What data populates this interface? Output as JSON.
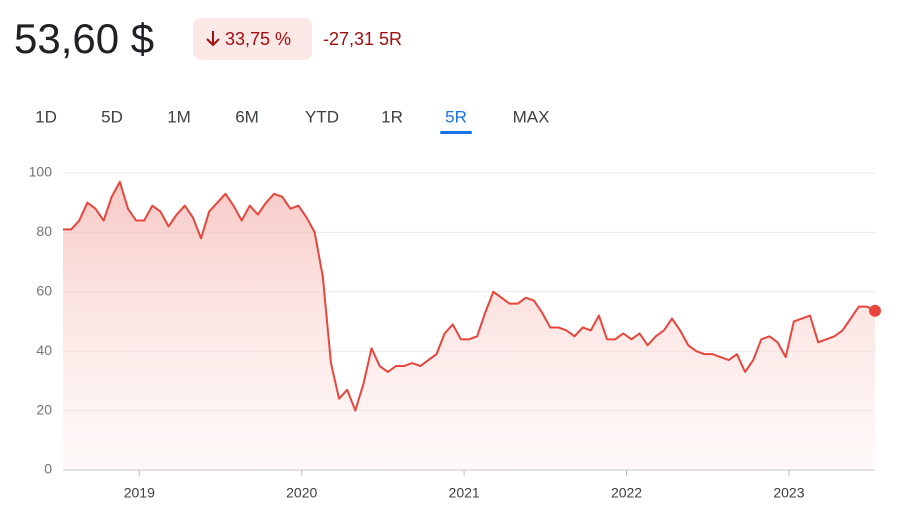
{
  "header": {
    "price": "53,60 $",
    "change_percent": "33,75 %",
    "change_value": "-27,31 5R"
  },
  "tabs": {
    "items": [
      "1D",
      "5D",
      "1M",
      "6M",
      "YTD",
      "1R",
      "5R",
      "MAX"
    ],
    "selected": 6
  },
  "chart_data": {
    "type": "line",
    "x": [
      2018.53,
      2018.58,
      2018.63,
      2018.68,
      2018.73,
      2018.78,
      2018.83,
      2018.88,
      2018.93,
      2018.98,
      2019.03,
      2019.08,
      2019.13,
      2019.18,
      2019.23,
      2019.28,
      2019.33,
      2019.38,
      2019.43,
      2019.48,
      2019.53,
      2019.58,
      2019.63,
      2019.68,
      2019.73,
      2019.78,
      2019.83,
      2019.88,
      2019.93,
      2019.98,
      2020.03,
      2020.08,
      2020.13,
      2020.18,
      2020.23,
      2020.28,
      2020.33,
      2020.38,
      2020.43,
      2020.48,
      2020.53,
      2020.58,
      2020.63,
      2020.68,
      2020.73,
      2020.78,
      2020.83,
      2020.88,
      2020.93,
      2020.98,
      2021.03,
      2021.08,
      2021.13,
      2021.18,
      2021.23,
      2021.28,
      2021.33,
      2021.38,
      2021.43,
      2021.48,
      2021.53,
      2021.58,
      2021.63,
      2021.68,
      2021.73,
      2021.78,
      2021.83,
      2021.88,
      2021.93,
      2021.98,
      2022.03,
      2022.08,
      2022.13,
      2022.18,
      2022.23,
      2022.28,
      2022.33,
      2022.38,
      2022.43,
      2022.48,
      2022.53,
      2022.58,
      2022.63,
      2022.68,
      2022.73,
      2022.78,
      2022.83,
      2022.88,
      2022.93,
      2022.98,
      2023.03,
      2023.08,
      2023.13,
      2023.18,
      2023.23,
      2023.28,
      2023.33,
      2023.38,
      2023.43,
      2023.48,
      2023.53
    ],
    "values": [
      81,
      81,
      84,
      90,
      88,
      84,
      92,
      97,
      88,
      84,
      84,
      89,
      87,
      82,
      86,
      89,
      85,
      78,
      87,
      90,
      93,
      89,
      84,
      89,
      86,
      90,
      93,
      92,
      88,
      89,
      85,
      80,
      65,
      36,
      24,
      27,
      20,
      29,
      41,
      35,
      33,
      35,
      35,
      36,
      35,
      37,
      39,
      46,
      49,
      44,
      44,
      45,
      53,
      60,
      58,
      56,
      56,
      58,
      57,
      53,
      48,
      48,
      47,
      45,
      48,
      47,
      52,
      44,
      44,
      46,
      44,
      46,
      42,
      45,
      47,
      51,
      47,
      42,
      40,
      39,
      39,
      38,
      37,
      39,
      33,
      37,
      44,
      45,
      43,
      38,
      50,
      51,
      52,
      43,
      44,
      45,
      47,
      51,
      55,
      55,
      53.6
    ],
    "color": "#e8453c",
    "area": true,
    "xlim": [
      2018.53,
      2023.53
    ],
    "xticks": [
      2019,
      2020,
      2021,
      2022,
      2023
    ],
    "ylim": [
      0,
      100
    ],
    "yticks": [
      0,
      20,
      40,
      60,
      80,
      100
    ],
    "grid": true
  }
}
